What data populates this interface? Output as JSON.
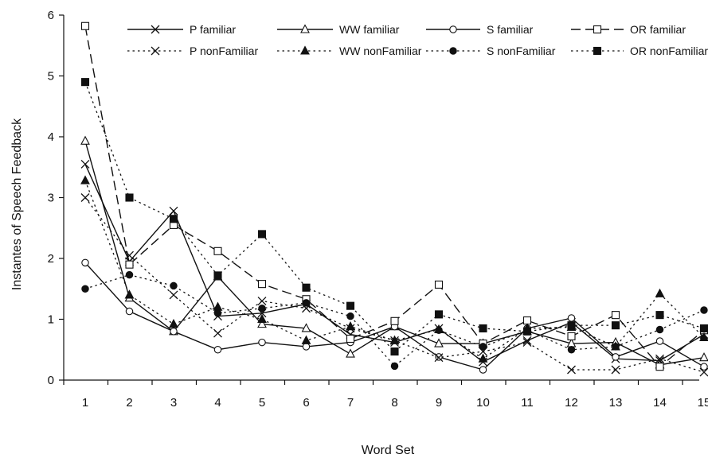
{
  "chart_data": {
    "type": "line",
    "title": "",
    "xlabel": "Word Set",
    "ylabel": "Instantes of Speech Feedback",
    "x": [
      1,
      2,
      3,
      4,
      5,
      6,
      7,
      8,
      9,
      10,
      11,
      12,
      13,
      14,
      15
    ],
    "ylim": [
      0,
      6
    ],
    "yticks": [
      "0",
      "1",
      "2",
      "3",
      "4",
      "5",
      "6"
    ],
    "grid": false,
    "legend_position": "top",
    "series": [
      {
        "name": "P familiar",
        "values": [
          3.55,
          1.95,
          2.78,
          1.05,
          1.1,
          1.25,
          0.75,
          0.62,
          0.85,
          0.3,
          0.65,
          0.95,
          0.35,
          0.32,
          0.75
        ],
        "marker": "x",
        "dash": "solid",
        "fill": "none"
      },
      {
        "name": "WW familiar",
        "values": [
          3.93,
          1.35,
          0.8,
          1.7,
          0.92,
          0.85,
          0.43,
          0.88,
          0.6,
          0.6,
          0.8,
          0.6,
          0.62,
          0.25,
          0.37
        ],
        "marker": "triangle",
        "dash": "solid",
        "fill": "open"
      },
      {
        "name": "S familiar",
        "values": [
          1.93,
          1.13,
          0.8,
          0.5,
          0.62,
          0.55,
          0.62,
          0.88,
          0.38,
          0.17,
          0.85,
          1.02,
          0.38,
          0.64,
          0.22
        ],
        "marker": "circle",
        "dash": "solid",
        "fill": "open"
      },
      {
        "name": "OR familiar",
        "values": [
          5.82,
          1.9,
          2.55,
          2.12,
          1.58,
          1.33,
          0.68,
          0.97,
          1.57,
          0.6,
          0.98,
          0.72,
          1.07,
          0.22,
          0.82
        ],
        "marker": "square",
        "dash": "dashed",
        "fill": "open"
      },
      {
        "name": "P nonFamiliar",
        "values": [
          3.0,
          2.05,
          1.4,
          0.77,
          1.3,
          1.18,
          0.85,
          0.65,
          0.37,
          0.47,
          0.62,
          0.17,
          0.17,
          0.35,
          0.13
        ],
        "marker": "x",
        "dash": "dotted",
        "fill": "none"
      },
      {
        "name": "WW nonFamiliar",
        "values": [
          3.28,
          1.4,
          0.92,
          1.2,
          1.0,
          0.65,
          0.88,
          0.65,
          0.83,
          0.35,
          0.85,
          0.87,
          0.55,
          1.42,
          0.7
        ],
        "marker": "triangle",
        "dash": "dotted",
        "fill": "filled"
      },
      {
        "name": "S nonFamiliar",
        "values": [
          1.5,
          1.73,
          1.55,
          1.1,
          1.18,
          1.27,
          1.05,
          0.23,
          0.82,
          0.55,
          0.82,
          0.5,
          0.55,
          0.83,
          1.15
        ],
        "marker": "circle",
        "dash": "dotted",
        "fill": "filled"
      },
      {
        "name": "OR nonFamiliar",
        "values": [
          4.9,
          3.0,
          2.65,
          1.72,
          2.4,
          1.52,
          1.22,
          0.47,
          1.08,
          0.85,
          0.8,
          0.9,
          0.9,
          1.07,
          0.85
        ],
        "marker": "square",
        "dash": "dotted",
        "fill": "filled"
      }
    ]
  }
}
